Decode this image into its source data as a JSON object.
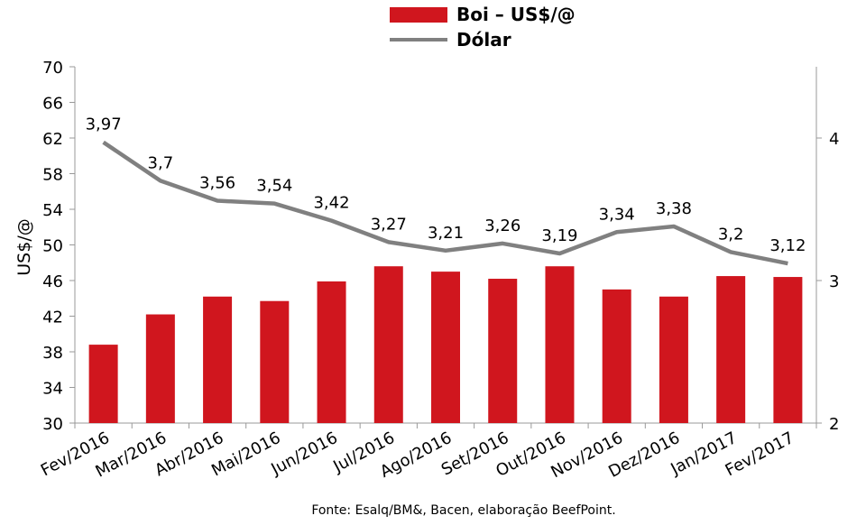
{
  "chart_data": {
    "type": "bar+line",
    "categories": [
      "Fev/2016",
      "Mar/2016",
      "Abr/2016",
      "Mai/2016",
      "Jun/2016",
      "Jul/2016",
      "Ago/2016",
      "Set/2016",
      "Out/2016",
      "Nov/2016",
      "Dez/2016",
      "Jan/2017",
      "Fev/2017"
    ],
    "series": [
      {
        "name": "Boi – US$/@",
        "type": "bar",
        "axis": "left",
        "color": "#d0161e",
        "values": [
          38.8,
          42.2,
          44.2,
          43.7,
          45.9,
          47.6,
          47.0,
          46.2,
          47.6,
          45.0,
          44.2,
          46.5,
          46.4
        ]
      },
      {
        "name": "Dólar",
        "type": "line",
        "axis": "right",
        "color": "#808080",
        "values": [
          3.97,
          3.7,
          3.56,
          3.54,
          3.42,
          3.27,
          3.21,
          3.26,
          3.19,
          3.34,
          3.38,
          3.2,
          3.12
        ],
        "labels": [
          "3,97",
          "3,7",
          "3,56",
          "3,54",
          "3,42",
          "3,27",
          "3,21",
          "3,26",
          "3,19",
          "3,34",
          "3,38",
          "3,2",
          "3,12"
        ]
      }
    ],
    "ylabel": "US$/@",
    "ylim": [
      30,
      70
    ],
    "yticks": [
      30,
      34,
      38,
      42,
      46,
      50,
      54,
      58,
      62,
      66,
      70
    ],
    "y2lim": [
      2,
      4.5
    ],
    "y2ticks": [
      2,
      3,
      4
    ],
    "legend_position": "top-center",
    "grid": false,
    "source": "Fonte:  Esalq/BM&,  Bacen,  elaboração  BeefPoint."
  }
}
